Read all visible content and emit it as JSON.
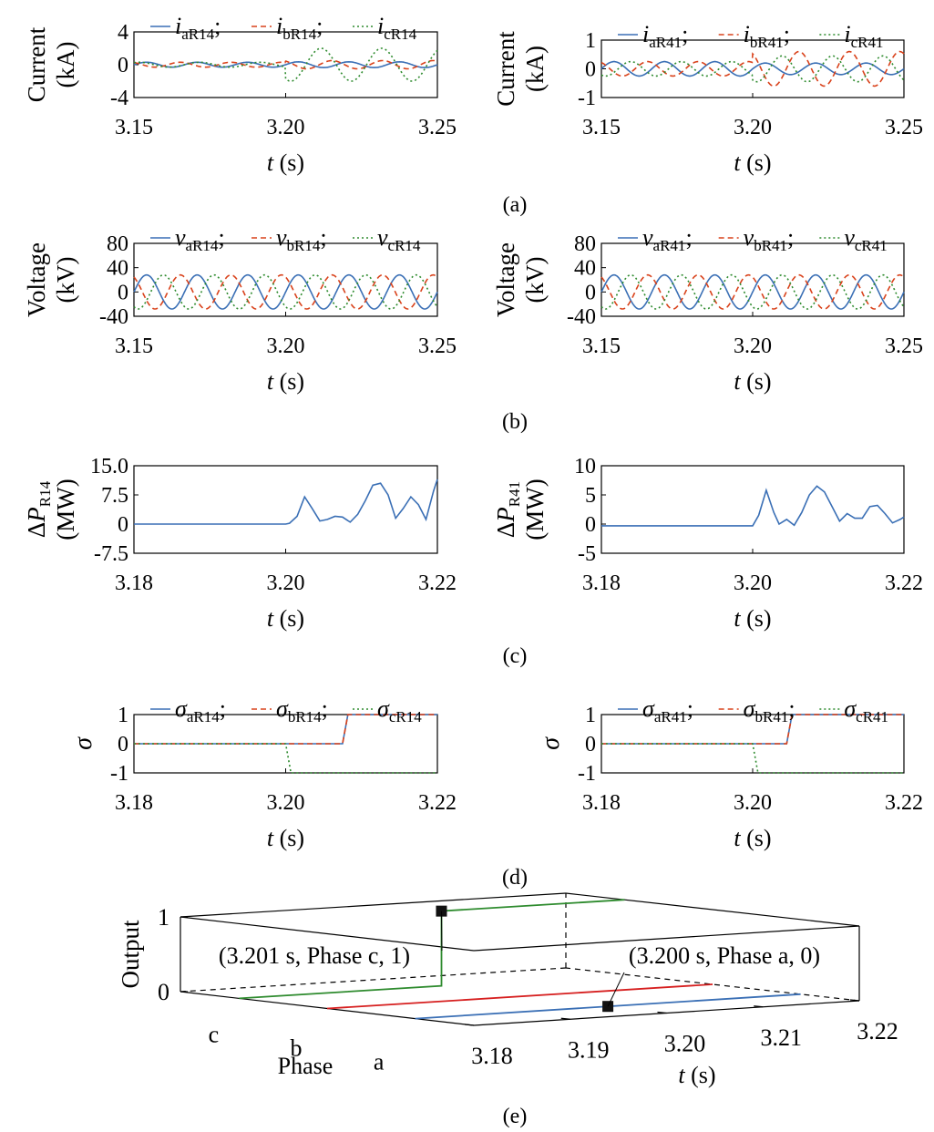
{
  "figure": {
    "panel_labels": [
      "(a)",
      "(b)",
      "(c)",
      "(d)",
      "(e)"
    ]
  },
  "chart_data": [
    {
      "id": "a-left",
      "type": "line",
      "ylabel_lines": [
        "Current",
        "(kA)"
      ],
      "xlabel": "t (s)",
      "xlim": [
        3.15,
        3.25
      ],
      "ylim": [
        -4,
        4
      ],
      "xticks": [
        "3.15",
        "3.20",
        "3.25"
      ],
      "xtick_values": [
        3.15,
        3.2,
        3.25
      ],
      "yticks": [
        "-4",
        "0",
        "4"
      ],
      "ytick_values": [
        -4,
        0,
        4
      ],
      "legend": [
        {
          "main": "i",
          "sub": "aR14"
        },
        {
          "main": "i",
          "sub": "bR14"
        },
        {
          "main": "i",
          "sub": "cR14"
        }
      ],
      "series": [
        {
          "name": "iaR14",
          "color": "#3a6fb5",
          "dash": "solid",
          "sin": {
            "pre": 0.3,
            "post": 0.35,
            "freq": 60,
            "phase": 0
          }
        },
        {
          "name": "ibR14",
          "color": "#d9421b",
          "dash": "dashed",
          "sin": {
            "pre": 0.3,
            "post": 0.5,
            "freq": 60,
            "phase": 2.09
          }
        },
        {
          "name": "icR14",
          "color": "#2e8b2e",
          "dash": "dotted",
          "sin": {
            "pre": 0.3,
            "post": 2.0,
            "freq": 50,
            "phase": 4.19
          }
        }
      ]
    },
    {
      "id": "a-right",
      "type": "line",
      "ylabel_lines": [
        "Current",
        "(kA)"
      ],
      "xlabel": "t (s)",
      "xlim": [
        3.15,
        3.25
      ],
      "ylim": [
        -1,
        1
      ],
      "xticks": [
        "3.15",
        "3.20",
        "3.25"
      ],
      "xtick_values": [
        3.15,
        3.2,
        3.25
      ],
      "yticks": [
        "-1",
        "0",
        "1"
      ],
      "ytick_values": [
        -1,
        0,
        1
      ],
      "legend": [
        {
          "main": "i",
          "sub": "aR41"
        },
        {
          "main": "i",
          "sub": "bR41"
        },
        {
          "main": "i",
          "sub": "cR41"
        }
      ],
      "series": [
        {
          "name": "iaR41",
          "color": "#3a6fb5",
          "dash": "solid",
          "sin": {
            "pre": 0.25,
            "post": 0.2,
            "freq": 60,
            "phase": 0
          }
        },
        {
          "name": "ibR41",
          "color": "#d9421b",
          "dash": "dashed",
          "sin": {
            "pre": 0.25,
            "post": 0.6,
            "freq": 60,
            "phase": 2.09
          }
        },
        {
          "name": "icR41",
          "color": "#2e8b2e",
          "dash": "dotted",
          "sin": {
            "pre": 0.25,
            "post": 0.45,
            "freq": 60,
            "phase": 4.19
          }
        }
      ]
    },
    {
      "id": "b-left",
      "type": "line",
      "ylabel_lines": [
        "Voltage",
        "(kV)"
      ],
      "xlabel": "t (s)",
      "xlim": [
        3.15,
        3.25
      ],
      "ylim": [
        -40,
        80
      ],
      "xticks": [
        "3.15",
        "3.20",
        "3.25"
      ],
      "xtick_values": [
        3.15,
        3.2,
        3.25
      ],
      "yticks": [
        "-40",
        "0",
        "40",
        "80"
      ],
      "ytick_values": [
        -40,
        0,
        40,
        80
      ],
      "legend": [
        {
          "main": "v",
          "sub": "aR14"
        },
        {
          "main": "v",
          "sub": "bR14"
        },
        {
          "main": "v",
          "sub": "cR14"
        }
      ],
      "series": [
        {
          "name": "vaR14",
          "color": "#3a6fb5",
          "dash": "solid",
          "sin": {
            "pre": 28,
            "post": 28,
            "freq": 60,
            "phase": 0
          }
        },
        {
          "name": "vbR14",
          "color": "#d9421b",
          "dash": "dashed",
          "sin": {
            "pre": 28,
            "post": 28,
            "freq": 60,
            "phase": 2.09
          }
        },
        {
          "name": "vcR14",
          "color": "#2e8b2e",
          "dash": "dotted",
          "sin": {
            "pre": 28,
            "post": 28,
            "freq": 60,
            "phase": 4.19
          }
        }
      ]
    },
    {
      "id": "b-right",
      "type": "line",
      "ylabel_lines": [
        "Voltage",
        "(kV)"
      ],
      "xlabel": "t (s)",
      "xlim": [
        3.15,
        3.25
      ],
      "ylim": [
        -40,
        80
      ],
      "xticks": [
        "3.15",
        "3.20",
        "3.25"
      ],
      "xtick_values": [
        3.15,
        3.2,
        3.25
      ],
      "yticks": [
        "-40",
        "0",
        "40",
        "80"
      ],
      "ytick_values": [
        -40,
        0,
        40,
        80
      ],
      "legend": [
        {
          "main": "v",
          "sub": "aR41"
        },
        {
          "main": "v",
          "sub": "bR41"
        },
        {
          "main": "v",
          "sub": "cR41"
        }
      ],
      "series": [
        {
          "name": "vaR41",
          "color": "#3a6fb5",
          "dash": "solid",
          "sin": {
            "pre": 28,
            "post": 28,
            "freq": 60,
            "phase": 0
          }
        },
        {
          "name": "vbR41",
          "color": "#d9421b",
          "dash": "dashed",
          "sin": {
            "pre": 28,
            "post": 28,
            "freq": 60,
            "phase": 2.09
          }
        },
        {
          "name": "vcR41",
          "color": "#2e8b2e",
          "dash": "dotted",
          "sin": {
            "pre": 28,
            "post": 28,
            "freq": 60,
            "phase": 4.19
          }
        }
      ]
    },
    {
      "id": "c-left",
      "type": "line",
      "ylabel_lines": [
        "ΔPR14",
        "(MW)"
      ],
      "xlabel": "t (s)",
      "xlim": [
        3.18,
        3.22
      ],
      "ylim": [
        -7.5,
        15.0
      ],
      "xticks": [
        "3.18",
        "3.20",
        "3.22"
      ],
      "xtick_values": [
        3.18,
        3.2,
        3.22
      ],
      "yticks": [
        "-7.5",
        "0",
        "7.5",
        "15.0"
      ],
      "ytick_values": [
        -7.5,
        0,
        7.5,
        15.0
      ],
      "legend": [],
      "series": [
        {
          "name": "ΔPR14",
          "color": "#3a6fb5",
          "dash": "solid",
          "x": [
            3.18,
            3.2,
            3.2005,
            3.2015,
            3.2025,
            3.2035,
            3.2045,
            3.2055,
            3.2065,
            3.2075,
            3.2085,
            3.2095,
            3.2105,
            3.2115,
            3.2125,
            3.2135,
            3.2145,
            3.2155,
            3.2165,
            3.2175,
            3.2185,
            3.2195,
            3.22
          ],
          "y": [
            0,
            0,
            0.2,
            2.0,
            7.0,
            4.0,
            0.8,
            1.2,
            2.0,
            1.8,
            0.5,
            2.5,
            6.0,
            10.0,
            10.5,
            7.5,
            1.5,
            4.0,
            7.0,
            5.0,
            1.2,
            8.5,
            11.5
          ]
        }
      ]
    },
    {
      "id": "c-right",
      "type": "line",
      "ylabel_lines": [
        "ΔPR41",
        "(MW)"
      ],
      "xlabel": "t (s)",
      "xlim": [
        3.18,
        3.22
      ],
      "ylim": [
        -5,
        10
      ],
      "xticks": [
        "3.18",
        "3.20",
        "3.22"
      ],
      "xtick_values": [
        3.18,
        3.2,
        3.22
      ],
      "yticks": [
        "-5",
        "0",
        "5",
        "10"
      ],
      "ytick_values": [
        -5,
        0,
        5,
        10
      ],
      "legend": [],
      "series": [
        {
          "name": "ΔPR41",
          "color": "#3a6fb5",
          "dash": "solid",
          "x": [
            3.18,
            3.2,
            3.2008,
            3.2018,
            3.2028,
            3.2035,
            3.2045,
            3.2055,
            3.2065,
            3.2075,
            3.2085,
            3.2095,
            3.2105,
            3.2115,
            3.2125,
            3.2135,
            3.2145,
            3.2155,
            3.2165,
            3.2175,
            3.2185,
            3.2195,
            3.22
          ],
          "y": [
            -0.3,
            -0.3,
            1.5,
            5.8,
            2.0,
            0,
            0.8,
            -0.2,
            2.0,
            5.0,
            6.5,
            5.5,
            3.0,
            0.5,
            1.8,
            1.0,
            1.0,
            3.0,
            3.2,
            1.8,
            0.2,
            0.8,
            1.2
          ]
        }
      ]
    },
    {
      "id": "d-left",
      "type": "line",
      "ylabel_lines": [
        "σ"
      ],
      "xlabel": "t (s)",
      "xlim": [
        3.18,
        3.22
      ],
      "ylim": [
        -1,
        1
      ],
      "xticks": [
        "3.18",
        "3.20",
        "3.22"
      ],
      "xtick_values": [
        3.18,
        3.2,
        3.22
      ],
      "yticks": [
        "-1",
        "0",
        "1"
      ],
      "ytick_values": [
        -1,
        0,
        1
      ],
      "legend": [
        {
          "main": "σ",
          "sub": "aR14"
        },
        {
          "main": "σ",
          "sub": "bR14"
        },
        {
          "main": "σ",
          "sub": "cR14"
        }
      ],
      "series": [
        {
          "name": "σaR14",
          "color": "#3a6fb5",
          "dash": "solid",
          "x": [
            3.18,
            3.2075,
            3.2082,
            3.22
          ],
          "y": [
            0,
            0,
            1,
            1
          ]
        },
        {
          "name": "σbR14",
          "color": "#d9421b",
          "dash": "dashed",
          "x": [
            3.18,
            3.2075,
            3.2082,
            3.22
          ],
          "y": [
            0,
            0,
            1,
            1
          ]
        },
        {
          "name": "σcR14",
          "color": "#2e8b2e",
          "dash": "dotted",
          "x": [
            3.18,
            3.2,
            3.2007,
            3.22
          ],
          "y": [
            0,
            0,
            -1,
            -1
          ]
        }
      ]
    },
    {
      "id": "d-right",
      "type": "line",
      "ylabel_lines": [
        "σ"
      ],
      "xlabel": "t (s)",
      "xlim": [
        3.18,
        3.22
      ],
      "ylim": [
        -1,
        1
      ],
      "xticks": [
        "3.18",
        "3.20",
        "3.22"
      ],
      "xtick_values": [
        3.18,
        3.2,
        3.22
      ],
      "yticks": [
        "-1",
        "0",
        "1"
      ],
      "ytick_values": [
        -1,
        0,
        1
      ],
      "legend": [
        {
          "main": "σ",
          "sub": "aR41"
        },
        {
          "main": "σ",
          "sub": "bR41"
        },
        {
          "main": "σ",
          "sub": "cR41"
        }
      ],
      "series": [
        {
          "name": "σaR41",
          "color": "#3a6fb5",
          "dash": "solid",
          "x": [
            3.18,
            3.2045,
            3.2052,
            3.22
          ],
          "y": [
            0,
            0,
            1,
            1
          ]
        },
        {
          "name": "σbR41",
          "color": "#d9421b",
          "dash": "dashed",
          "x": [
            3.18,
            3.2045,
            3.2052,
            3.22
          ],
          "y": [
            0,
            0,
            1,
            1
          ]
        },
        {
          "name": "σcR41",
          "color": "#2e8b2e",
          "dash": "dotted",
          "x": [
            3.18,
            3.2,
            3.2007,
            3.22
          ],
          "y": [
            0,
            0,
            -1,
            -1
          ]
        }
      ]
    },
    {
      "id": "e",
      "type": "line3d",
      "zlabel": "Output",
      "ylabel": "Phase",
      "xlabel": "t (s)",
      "xlim": [
        3.18,
        3.22
      ],
      "xticks": [
        "3.18",
        "3.19",
        "3.20",
        "3.21",
        "3.22"
      ],
      "xtick_values": [
        3.18,
        3.19,
        3.2,
        3.21,
        3.22
      ],
      "phase_ticks": [
        "c",
        "b",
        "a"
      ],
      "zticks": [
        "0",
        "1"
      ],
      "series": [
        {
          "name": "Phase a",
          "phase": "a",
          "color": "#3a6fb5",
          "x": [
            3.18,
            3.22
          ],
          "z": [
            0,
            0
          ]
        },
        {
          "name": "Phase b",
          "phase": "b",
          "color": "#d61f1f",
          "x": [
            3.18,
            3.22
          ],
          "z": [
            0,
            0
          ]
        },
        {
          "name": "Phase c",
          "phase": "c",
          "color": "#2e8b2e",
          "x": [
            3.18,
            3.201,
            3.201,
            3.22
          ],
          "z": [
            0,
            0,
            1,
            1
          ]
        }
      ],
      "annotations": [
        {
          "text": "(3.201 s, Phase c, 1)",
          "x": 3.201,
          "phase": "c",
          "z": 1
        },
        {
          "text": "(3.200 s, Phase a, 0)",
          "x": 3.2,
          "phase": "a",
          "z": 0
        }
      ]
    }
  ]
}
